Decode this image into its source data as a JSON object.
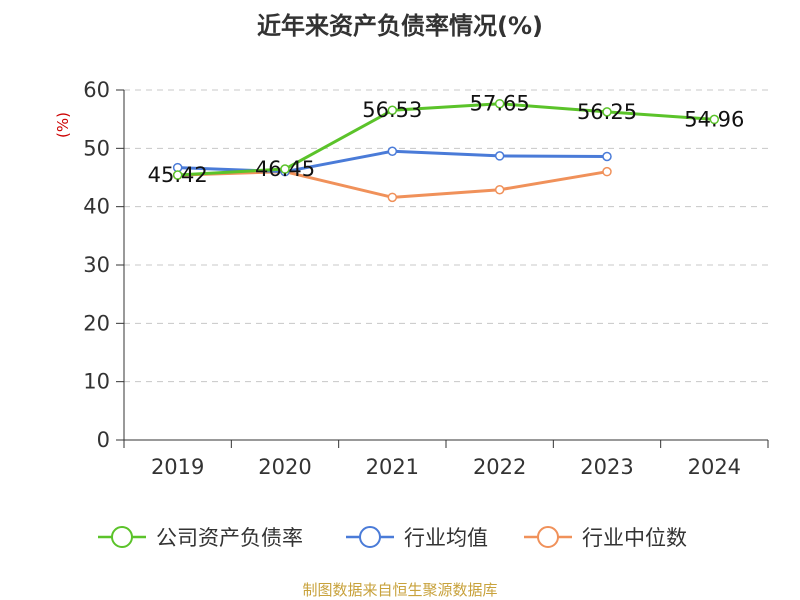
{
  "chart_data": {
    "type": "line",
    "title": "近年来资产负债率情况(%)",
    "ylabel": "(%)",
    "xlabel": "",
    "categories": [
      "2019",
      "2020",
      "2021",
      "2022",
      "2023",
      "2024"
    ],
    "ylim": [
      0,
      60
    ],
    "yticks": [
      0,
      10,
      20,
      30,
      40,
      50,
      60
    ],
    "grid": true,
    "legend_position": "bottom",
    "series": [
      {
        "name": "公司资产负债率",
        "color": "#5bc32a",
        "values": [
          45.42,
          46.45,
          56.53,
          57.65,
          56.25,
          54.96
        ],
        "labels": [
          "45.42",
          "46.45",
          "56.53",
          "57.65",
          "56.25",
          "54.96"
        ]
      },
      {
        "name": "行业均值",
        "color": "#4a7bd8",
        "values": [
          46.7,
          46.0,
          49.5,
          48.7,
          48.6,
          null
        ]
      },
      {
        "name": "行业中位数",
        "color": "#f0915a",
        "values": [
          45.4,
          46.0,
          41.6,
          42.9,
          46.0,
          null
        ]
      }
    ]
  },
  "source": "制图数据来自恒生聚源数据库"
}
